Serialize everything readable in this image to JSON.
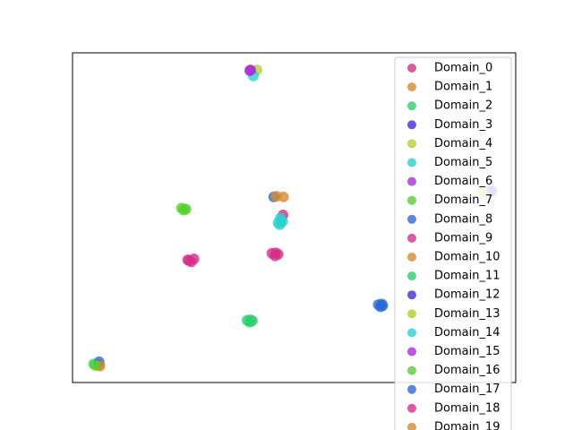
{
  "chart_data": {
    "type": "scatter",
    "xlim": [
      0,
      100
    ],
    "ylim": [
      0,
      100
    ],
    "series": [
      {
        "name": "Domain_0",
        "color": "#d62f8a",
        "x": [
          26.0,
          27.4,
          26.8,
          45.0,
          46.4,
          45.7,
          47.5
        ],
        "values": [
          37.2,
          37.5,
          36.6,
          39.2,
          38.9,
          38.4,
          50.8
        ]
      },
      {
        "name": "Domain_1",
        "color": "#d98a2b",
        "x": [
          47.6,
          5.9
        ],
        "values": [
          56.3,
          5.3
        ]
      },
      {
        "name": "Domain_2",
        "color": "#2bd16b",
        "x": [
          39.4,
          40.6,
          40.0,
          4.8
        ],
        "values": [
          18.9,
          18.7,
          18.3,
          5.6
        ]
      },
      {
        "name": "Domain_3",
        "color": "#4a2bd6",
        "x": [
          94.3
        ],
        "values": [
          58.2
        ]
      },
      {
        "name": "Domain_4",
        "color": "#b0d12b",
        "x": [
          41.6,
          92.7
        ],
        "values": [
          94.8,
          57.9
        ]
      },
      {
        "name": "Domain_5",
        "color": "#2bd1d1",
        "x": [
          40.8,
          46.4,
          47.4,
          46.9,
          46.8
        ],
        "values": [
          93.0,
          48.4,
          48.8,
          49.8,
          47.9
        ]
      },
      {
        "name": "Domain_6",
        "color": "#ac2bd6",
        "x": [
          40.2
        ],
        "values": [
          94.8
        ]
      },
      {
        "name": "Domain_7",
        "color": "#52d12b",
        "x": [
          24.6,
          25.6,
          25.1
        ],
        "values": [
          52.9,
          52.6,
          52.3
        ]
      },
      {
        "name": "Domain_8",
        "color": "#2b6ad6",
        "x": [
          69.0,
          70.0,
          69.5,
          45.4,
          6.0
        ],
        "values": [
          23.6,
          23.3,
          23.0,
          56.3,
          6.3
        ]
      },
      {
        "name": "Domain_9",
        "color": "#d62f8a",
        "x": [
          26.3
        ],
        "values": [
          37.0
        ]
      },
      {
        "name": "Domain_10",
        "color": "#d98a2b",
        "x": [
          6.2
        ],
        "values": [
          5.0
        ]
      },
      {
        "name": "Domain_11",
        "color": "#2bd16b",
        "x": [
          40.2
        ],
        "values": [
          19.0
        ]
      },
      {
        "name": "Domain_12",
        "color": "#4a2bd6",
        "x": [
          94.6
        ],
        "values": [
          58.0
        ]
      },
      {
        "name": "Domain_13",
        "color": "#b0d12b",
        "x": [
          92.4
        ],
        "values": [
          58.1
        ]
      },
      {
        "name": "Domain_14",
        "color": "#2bd1d1",
        "x": [
          47.1
        ],
        "values": [
          49.2
        ]
      },
      {
        "name": "Domain_15",
        "color": "#ac2bd6",
        "x": [
          40.0
        ],
        "values": [
          94.6
        ]
      },
      {
        "name": "Domain_16",
        "color": "#52d12b",
        "x": [
          5.2
        ],
        "values": [
          5.2
        ]
      },
      {
        "name": "Domain_17",
        "color": "#2b6ad6",
        "x": [
          69.8
        ],
        "values": [
          23.8
        ]
      },
      {
        "name": "Domain_18",
        "color": "#d62f8a",
        "x": [
          45.9
        ],
        "values": [
          39.3
        ]
      },
      {
        "name": "Domain_19",
        "color": "#d98a2b",
        "x": [
          46.0
        ],
        "values": [
          56.5
        ]
      }
    ]
  }
}
